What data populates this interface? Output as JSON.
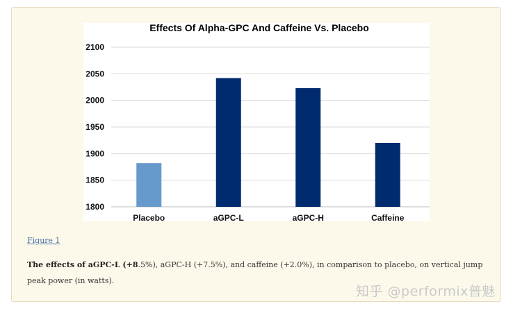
{
  "chart_data": {
    "type": "bar",
    "title": "Effects Of Alpha-GPC And Caffeine Vs. Placebo",
    "categories": [
      "Placebo",
      "aGPC-L",
      "aGPC-H",
      "Caffeine"
    ],
    "values": [
      1882,
      2042,
      2023,
      1920
    ],
    "bar_colors": [
      "#6699cc",
      "#002b6e",
      "#002b6e",
      "#002b6e"
    ],
    "ylim": [
      1800,
      2100
    ],
    "yticks": [
      1800,
      1850,
      1900,
      1950,
      2000,
      2050,
      2100
    ],
    "ytick_labels": [
      "1800",
      "1850",
      "1900",
      "1950",
      "2000",
      "2050",
      "2100"
    ],
    "grid": true,
    "xlabel": "",
    "ylabel": ""
  },
  "figure": {
    "link_label": "Figure 1",
    "caption_bold": "The effects of aGPC-L (+8",
    "caption_rest": ".5%), aGPC-H (+7.5%), and caffeine (+2.0%), in comparison to placebo, on vertical jump peak power (in watts)."
  },
  "watermark": "知乎 @performix普魅"
}
